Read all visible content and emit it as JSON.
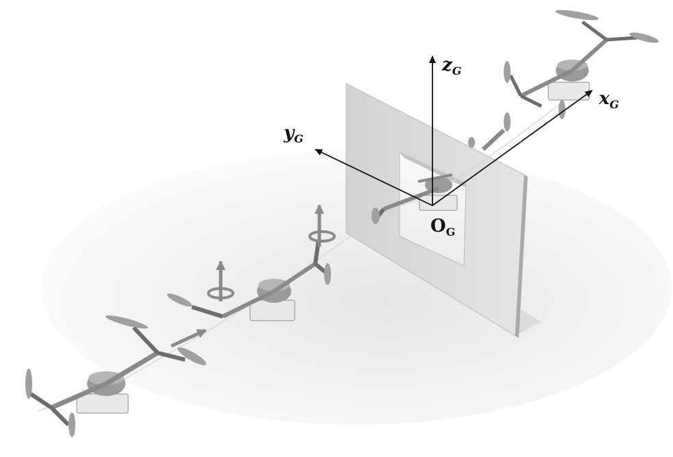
{
  "axes": {
    "z": {
      "main": "z",
      "sub": "G"
    },
    "y": {
      "main": "y",
      "sub": "G"
    },
    "x": {
      "main": "x",
      "sub": "G"
    },
    "origin": {
      "main": "O",
      "sub": "G"
    }
  },
  "colors": {
    "background": "#ffffff",
    "wall": "#d9d9d9",
    "wall_shadow": "#bdbdbd",
    "drone_body": "#9a9a9a",
    "drone_dark": "#5c5c5c",
    "axis": "#111111"
  }
}
